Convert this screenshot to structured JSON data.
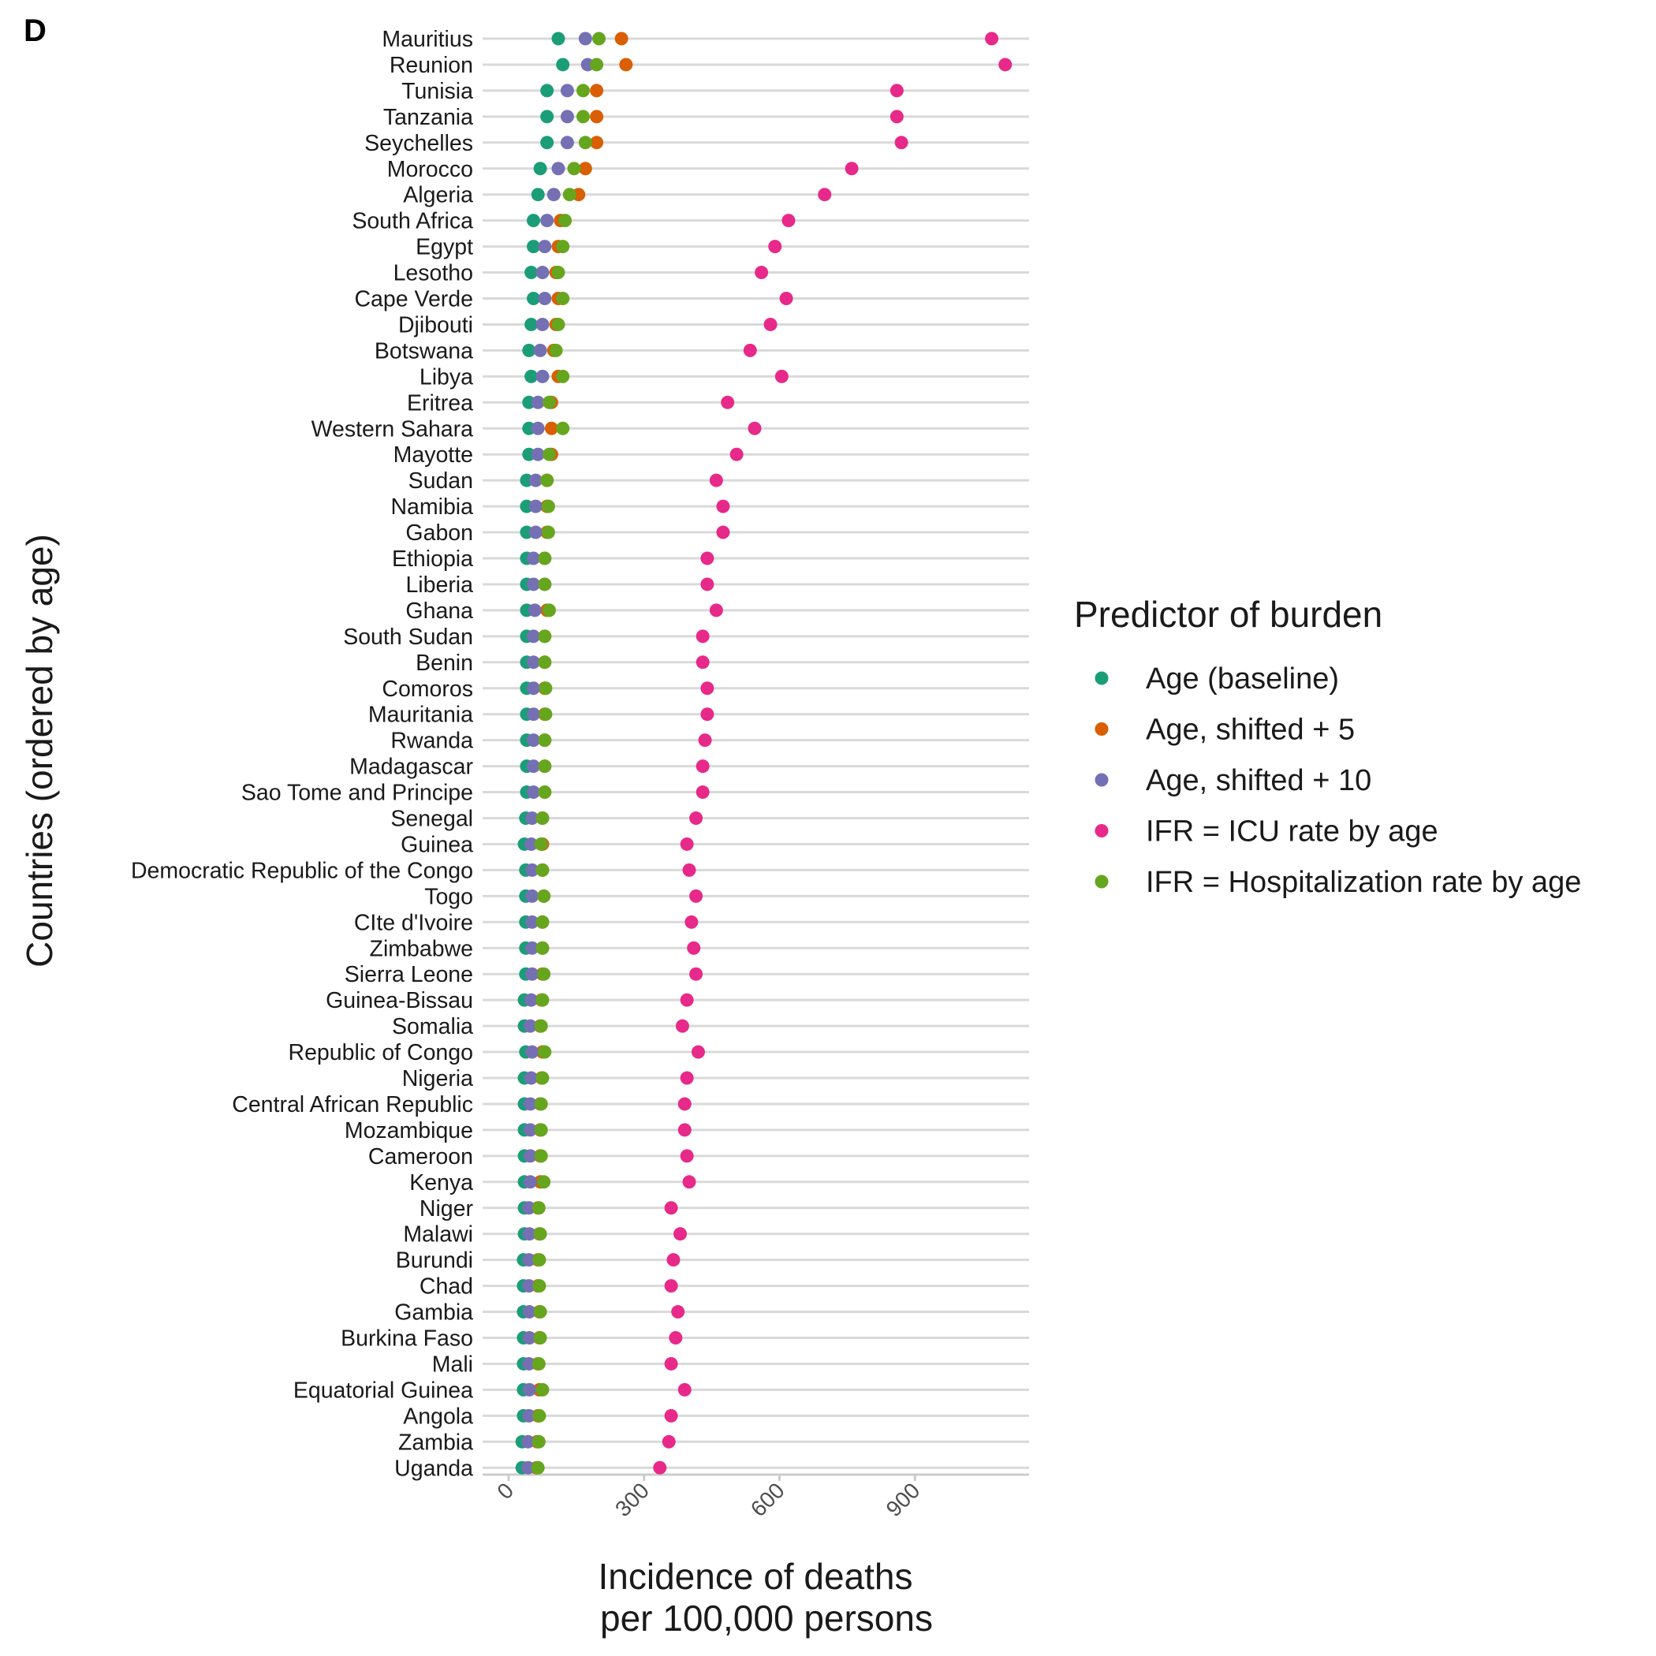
{
  "panel_label": "D",
  "colors": {
    "age_baseline": "#1b9e77",
    "age_shift5": "#d95f02",
    "age_shift10": "#7570b3",
    "ifr_icu": "#e7298a",
    "ifr_hosp": "#66a61e",
    "gridline": "#d9d9d9"
  },
  "chart_data": {
    "type": "scatter",
    "subtype": "dot plot (one row per country)",
    "title": "",
    "xlabel": "Incidence of deaths per 100,000 persons",
    "xlabel_lines": [
      "Incidence of deaths",
      "per 100,000 persons"
    ],
    "ylabel": "Countries (ordered by age)",
    "xlim": [
      0,
      1120
    ],
    "x_ticks": [
      0,
      300,
      600,
      900
    ],
    "grid": "horizontal major gridlines",
    "legend": {
      "title": "Predictor of burden",
      "placement": "right"
    },
    "categories": [
      "Mauritius",
      "Reunion",
      "Tunisia",
      "Tanzania",
      "Seychelles",
      "Morocco",
      "Algeria",
      "South Africa",
      "Egypt",
      "Lesotho",
      "Cape Verde",
      "Djibouti",
      "Botswana",
      "Libya",
      "Eritrea",
      "Western Sahara",
      "Mayotte",
      "Sudan",
      "Namibia",
      "Gabon",
      "Ethiopia",
      "Liberia",
      "Ghana",
      "South Sudan",
      "Benin",
      "Comoros",
      "Mauritania",
      "Rwanda",
      "Madagascar",
      "Sao Tome and Principe",
      "Senegal",
      "Guinea",
      "Democratic Republic of the Congo",
      "Togo",
      "CIte d'Ivoire",
      "Zimbabwe",
      "Sierra Leone",
      "Guinea-Bissau",
      "Somalia",
      "Republic of Congo",
      "Nigeria",
      "Central African Republic",
      "Mozambique",
      "Cameroon",
      "Kenya",
      "Niger",
      "Malawi",
      "Burundi",
      "Chad",
      "Gambia",
      "Burkina Faso",
      "Mali",
      "Equatorial Guinea",
      "Angola",
      "Zambia",
      "Uganda"
    ],
    "series": [
      {
        "name": "Age (baseline)",
        "color": "#1b9e77",
        "values": [
          110,
          120,
          85,
          85,
          85,
          70,
          65,
          55,
          55,
          50,
          55,
          50,
          45,
          50,
          45,
          45,
          45,
          40,
          40,
          40,
          40,
          40,
          40,
          40,
          40,
          40,
          40,
          40,
          40,
          40,
          38,
          35,
          38,
          38,
          38,
          38,
          38,
          35,
          35,
          38,
          35,
          35,
          35,
          35,
          35,
          35,
          35,
          33,
          33,
          33,
          33,
          33,
          33,
          33,
          30,
          30
        ]
      },
      {
        "name": "Age, shifted + 5",
        "color": "#d95f02",
        "values": [
          250,
          260,
          195,
          195,
          195,
          170,
          155,
          115,
          110,
          105,
          110,
          105,
          100,
          110,
          95,
          95,
          95,
          85,
          85,
          85,
          80,
          80,
          85,
          80,
          80,
          80,
          80,
          80,
          80,
          80,
          75,
          75,
          75,
          78,
          75,
          75,
          75,
          73,
          70,
          75,
          73,
          70,
          70,
          70,
          70,
          65,
          68,
          65,
          65,
          68,
          68,
          65,
          68,
          65,
          63,
          62
        ]
      },
      {
        "name": "Age, shifted + 10",
        "color": "#7570b3",
        "values": [
          170,
          175,
          130,
          130,
          130,
          110,
          100,
          85,
          80,
          75,
          80,
          75,
          70,
          75,
          65,
          65,
          65,
          60,
          60,
          60,
          55,
          55,
          58,
          55,
          55,
          55,
          55,
          55,
          55,
          55,
          52,
          50,
          52,
          52,
          52,
          52,
          52,
          50,
          48,
          52,
          50,
          48,
          48,
          48,
          48,
          45,
          46,
          45,
          45,
          46,
          46,
          45,
          46,
          45,
          43,
          43
        ]
      },
      {
        "name": "IFR = ICU rate by age",
        "color": "#e7298a",
        "values": [
          1070,
          1100,
          860,
          860,
          870,
          760,
          700,
          620,
          590,
          560,
          615,
          580,
          535,
          605,
          485,
          545,
          505,
          460,
          475,
          475,
          440,
          440,
          460,
          430,
          430,
          440,
          440,
          435,
          430,
          430,
          415,
          395,
          400,
          415,
          405,
          410,
          415,
          395,
          385,
          420,
          395,
          390,
          390,
          395,
          400,
          360,
          380,
          365,
          360,
          375,
          370,
          360,
          390,
          360,
          355,
          335
        ]
      },
      {
        "name": "IFR = Hospitalization rate by age",
        "color": "#66a61e",
        "values": [
          200,
          195,
          165,
          165,
          170,
          145,
          135,
          125,
          120,
          110,
          120,
          110,
          105,
          120,
          90,
          120,
          90,
          85,
          88,
          88,
          80,
          80,
          90,
          80,
          80,
          82,
          82,
          80,
          80,
          80,
          75,
          72,
          75,
          78,
          75,
          75,
          78,
          75,
          72,
          80,
          75,
          72,
          72,
          72,
          78,
          67,
          70,
          68,
          68,
          70,
          70,
          67,
          75,
          68,
          67,
          65
        ]
      }
    ]
  }
}
